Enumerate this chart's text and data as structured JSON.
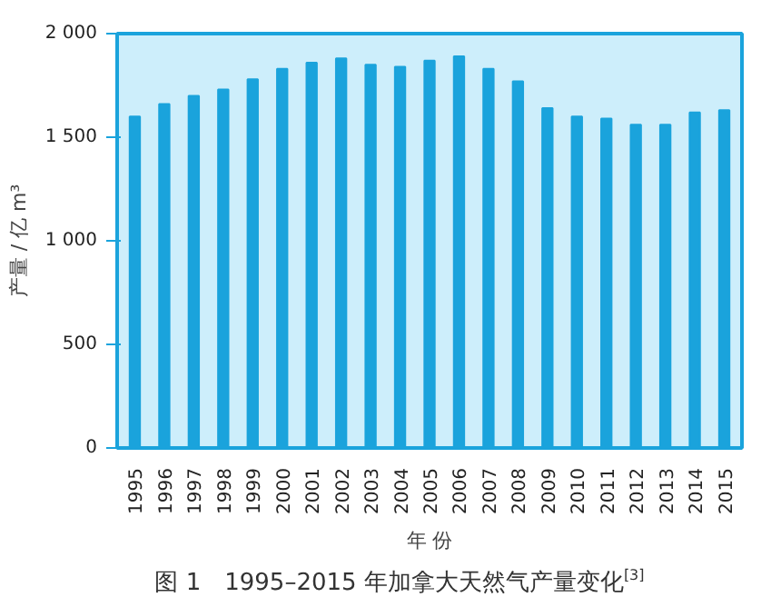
{
  "chart_data": {
    "type": "bar",
    "title": "图 1　1995–2015 年加拿大天然气产量变化$^{[3]}$",
    "xlabel": "年 份",
    "ylabel": "产量 / 亿 m³",
    "categories": [
      "1995",
      "1996",
      "1997",
      "1998",
      "1999",
      "2000",
      "2001",
      "2002",
      "2003",
      "2004",
      "2005",
      "2006",
      "2007",
      "2008",
      "2009",
      "2010",
      "2011",
      "2012",
      "2013",
      "2014",
      "2015"
    ],
    "values": [
      1600,
      1660,
      1700,
      1730,
      1780,
      1830,
      1860,
      1880,
      1850,
      1840,
      1870,
      1890,
      1830,
      1770,
      1640,
      1600,
      1590,
      1560,
      1560,
      1620,
      1630
    ],
    "color": "#1aa3dc",
    "ylim": [
      0,
      2000
    ],
    "yticks": [
      0,
      500,
      {
        "value": 1000,
        "label": "1 000"
      },
      {
        "value": 1500,
        "label": "1 500"
      },
      {
        "value": 2000,
        "label": "2 000"
      }
    ],
    "grid": false
  }
}
